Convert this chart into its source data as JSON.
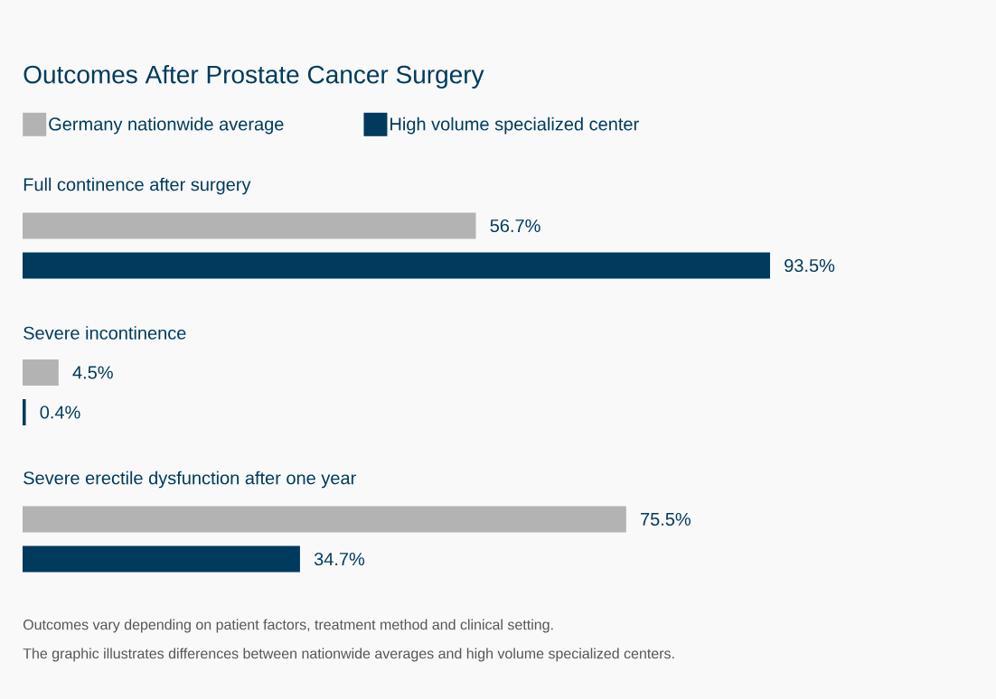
{
  "chart_data": {
    "type": "bar",
    "orientation": "horizontal",
    "title": "Outcomes After Prostate Cancer Surgery",
    "categories": [
      "Full continence after surgery",
      "Severe incontinence",
      "Severe erectile dysfunction after one year"
    ],
    "series": [
      {
        "name": "Germany nationwide average",
        "color": "#b3b3b3",
        "values": [
          56.7,
          4.5,
          75.5
        ],
        "value_labels": [
          "56.7%",
          "4.5%",
          "75.5%"
        ]
      },
      {
        "name": "High volume specialized center",
        "color": "#003a5d",
        "values": [
          93.5,
          0.4,
          34.7
        ],
        "value_labels": [
          "93.5%",
          "0.4%",
          "34.7%"
        ]
      }
    ],
    "legend": "top left",
    "annotations": [
      "Outcomes vary depending on patient factors, treatment method and clinical setting.",
      "The graphic illustrates differences between nationwide averages and high volume specialized centers."
    ]
  }
}
